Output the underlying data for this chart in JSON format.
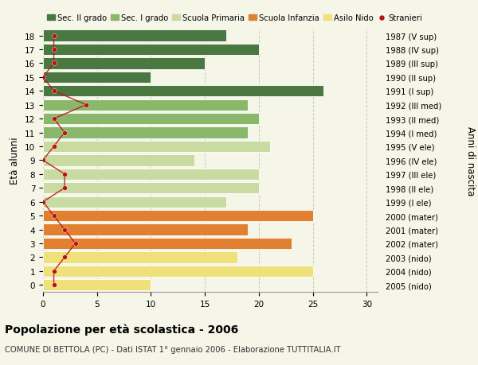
{
  "ages": [
    0,
    1,
    2,
    3,
    4,
    5,
    6,
    7,
    8,
    9,
    10,
    11,
    12,
    13,
    14,
    15,
    16,
    17,
    18
  ],
  "right_labels": [
    "2005 (nido)",
    "2004 (nido)",
    "2003 (nido)",
    "2002 (mater)",
    "2001 (mater)",
    "2000 (mater)",
    "1999 (I ele)",
    "1998 (II ele)",
    "1997 (III ele)",
    "1996 (IV ele)",
    "1995 (V ele)",
    "1994 (I med)",
    "1993 (II med)",
    "1992 (III med)",
    "1991 (I sup)",
    "1990 (II sup)",
    "1989 (III sup)",
    "1988 (IV sup)",
    "1987 (V sup)"
  ],
  "bar_values": [
    10,
    25,
    18,
    23,
    19,
    25,
    17,
    20,
    20,
    14,
    21,
    19,
    20,
    19,
    26,
    10,
    15,
    20,
    17
  ],
  "stranieri": [
    1,
    1,
    2,
    3,
    2,
    1,
    0,
    2,
    2,
    0,
    1,
    2,
    1,
    4,
    1,
    0,
    1,
    1,
    1
  ],
  "bar_colors": [
    "#f0e07a",
    "#f0e07a",
    "#f0e07a",
    "#e08030",
    "#e08030",
    "#e08030",
    "#c8dba0",
    "#c8dba0",
    "#c8dba0",
    "#c8dba0",
    "#c8dba0",
    "#8ab86a",
    "#8ab86a",
    "#8ab86a",
    "#4a7840",
    "#4a7840",
    "#4a7840",
    "#4a7840",
    "#4a7840"
  ],
  "legend_labels": [
    "Sec. II grado",
    "Sec. I grado",
    "Scuola Primaria",
    "Scuola Infanzia",
    "Asilo Nido",
    "Stranieri"
  ],
  "legend_colors": [
    "#4a7840",
    "#8ab86a",
    "#c8dba0",
    "#e08030",
    "#f0e07a",
    "#bb1111"
  ],
  "ylabel_left": "Età alunni",
  "ylabel_right": "Anni di nascita",
  "title": "Popolazione per età scolastica - 2006",
  "subtitle": "COMUNE DI BETTOLA (PC) - Dati ISTAT 1° gennaio 2006 - Elaborazione TUTTITALIA.IT",
  "xlim": [
    0,
    31
  ],
  "stranieri_color": "#bb1111",
  "bg_color": "#f5f5e8",
  "plot_bg": "#f5f5e8",
  "grid_color": "#ccccbb",
  "bar_height": 0.82
}
